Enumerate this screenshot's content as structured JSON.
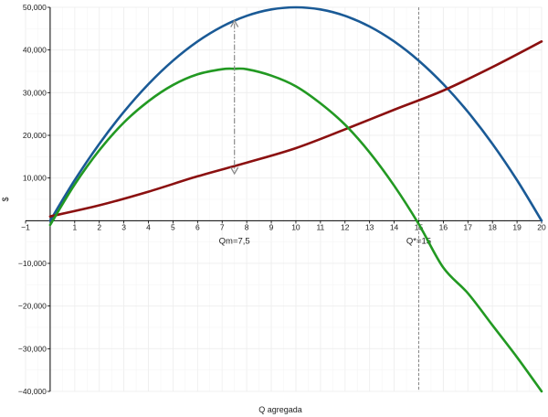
{
  "chart_data": {
    "type": "line",
    "xlabel": "Q agregada",
    "ylabel": "$",
    "xlim": [
      -1,
      20
    ],
    "ylim": [
      -40000,
      50000
    ],
    "x_ticks": [
      -1,
      1,
      2,
      3,
      4,
      5,
      6,
      7,
      8,
      9,
      10,
      11,
      12,
      13,
      14,
      15,
      16,
      17,
      18,
      19,
      20
    ],
    "y_ticks": [
      -40000,
      -30000,
      -20000,
      -10000,
      10000,
      20000,
      30000,
      40000,
      50000
    ],
    "x_tick_labels": [
      "−1",
      "1",
      "2",
      "3",
      "4",
      "5",
      "6",
      "7",
      "8",
      "9",
      "10",
      "11",
      "12",
      "13",
      "14",
      "15",
      "16",
      "17",
      "18",
      "19",
      "20"
    ],
    "y_tick_labels": [
      "−40,000",
      "−30,000",
      "−20,000",
      "−10,000",
      "10,000",
      "20,000",
      "30,000",
      "40,000",
      "50,000"
    ],
    "grid": true,
    "series": [
      {
        "color": "#1a5a96",
        "x": [
          0,
          1,
          2,
          3,
          4,
          5,
          6,
          7,
          8,
          9,
          10,
          11,
          12,
          13,
          14,
          15,
          16,
          17,
          18,
          19,
          20
        ],
        "y": [
          0,
          9500,
          18000,
          25500,
          32000,
          37500,
          42000,
          45500,
          48000,
          49500,
          50000,
          49500,
          48000,
          45500,
          42000,
          37500,
          32000,
          25500,
          18000,
          9500,
          0
        ]
      },
      {
        "color": "#8b1010",
        "x": [
          0,
          2,
          4,
          6,
          8,
          10,
          12,
          14,
          16,
          18,
          20
        ],
        "y": [
          1000,
          3600,
          6800,
          10400,
          13600,
          17000,
          21400,
          26000,
          30500,
          36000,
          42000
        ]
      },
      {
        "color": "#229922",
        "x": [
          0,
          1,
          2,
          3,
          4,
          5,
          6,
          7,
          7.5,
          8,
          9,
          10,
          11,
          12,
          13,
          14,
          15,
          16,
          17,
          18,
          19,
          20
        ],
        "y": [
          -1000,
          8500,
          16500,
          23000,
          28000,
          31800,
          34300,
          35500,
          35600,
          35500,
          34000,
          31500,
          27500,
          22500,
          16000,
          8200,
          -800,
          -11000,
          -17000,
          -24500,
          -32000,
          -40000
        ]
      }
    ],
    "reference_lines": [
      {
        "x": 15,
        "label": "Q*=15",
        "color": "#7a7a7a"
      }
    ],
    "annotations": [
      {
        "label": "Qm=7,5",
        "x": 7.5
      },
      {
        "type": "double-arrow",
        "x": 7.5,
        "y_from": 11000,
        "y_to": 46875,
        "color": "#8a8a8a"
      }
    ]
  }
}
